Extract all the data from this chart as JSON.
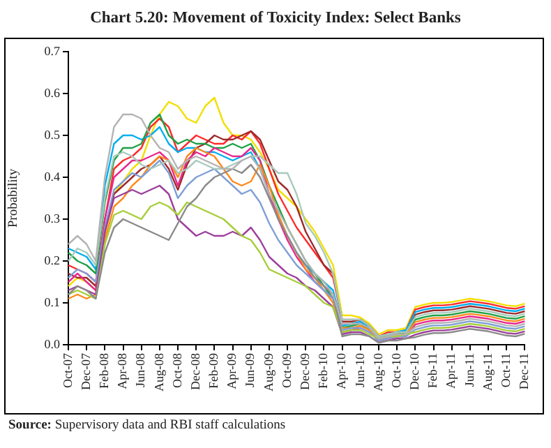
{
  "chart_data": {
    "type": "line",
    "title": "Chart 5.20: Movement of Toxicity Index: Select Banks",
    "ylabel": "Probability",
    "annotations": [
      "Source: Supervisory data and RBI staff calculations"
    ],
    "categories": [
      "Oct-07",
      null,
      "Dec-07",
      null,
      "Feb-08",
      null,
      "Apr-08",
      null,
      "Jun-08",
      null,
      "Aug-08",
      null,
      "Oct-08",
      null,
      "Dec-08",
      null,
      "Feb-09",
      null,
      "Apr-09",
      null,
      "Jun-09",
      null,
      "Aug-09",
      null,
      "Oct-09",
      null,
      "Dec-09",
      null,
      "Feb-10",
      null,
      "Apr-10",
      null,
      "Jun-10",
      null,
      "Aug-10",
      null,
      "Oct-10",
      null,
      "Dec-10",
      null,
      "Feb-11",
      null,
      "Apr-11",
      null,
      "Jun-11",
      null,
      "Aug-11",
      null,
      "Oct-11",
      null,
      "Dec-11"
    ],
    "ylim": [
      0,
      0.7
    ],
    "yticks": [
      {
        "value": 0,
        "label": "0.0"
      },
      0.1,
      0.2,
      0.3,
      0.4,
      0.5,
      0.6,
      0.7
    ],
    "grid": false,
    "legend": false,
    "series": [
      {
        "color": "#b3b3b3",
        "values": [
          0.24,
          0.26,
          0.24,
          0.2,
          0.4,
          0.52,
          0.55,
          0.55,
          0.54,
          0.5,
          0.47,
          0.46,
          0.42,
          0.44,
          0.45,
          0.44,
          0.43,
          0.42,
          0.42,
          0.44,
          0.45,
          0.42,
          0.36,
          0.32,
          0.28,
          0.24,
          0.2,
          0.17,
          0.15,
          0.12,
          0.05,
          0.05,
          0.05,
          0.04,
          0.015,
          0.02,
          0.025,
          0.025,
          0.042,
          0.048,
          0.052,
          0.052,
          0.054,
          0.058,
          0.062,
          0.059,
          0.056,
          0.051,
          0.046,
          0.044,
          0.05
        ]
      },
      {
        "color": "#a8cabd",
        "values": [
          0.2,
          0.23,
          0.22,
          0.19,
          0.35,
          0.45,
          0.46,
          0.45,
          0.43,
          0.42,
          0.43,
          0.44,
          0.41,
          0.42,
          0.44,
          0.43,
          0.42,
          0.42,
          0.43,
          0.44,
          0.45,
          0.45,
          0.43,
          0.41,
          0.41,
          0.36,
          0.29,
          0.26,
          0.22,
          0.17,
          0.06,
          0.06,
          0.06,
          0.045,
          0.02,
          0.025,
          0.03,
          0.03,
          0.066,
          0.072,
          0.076,
          0.076,
          0.078,
          0.082,
          0.086,
          0.083,
          0.08,
          0.075,
          0.07,
          0.068,
          0.074
        ]
      },
      {
        "color": "#8a8a8a",
        "values": [
          0.12,
          0.14,
          0.13,
          0.11,
          0.22,
          0.28,
          0.3,
          0.29,
          0.28,
          0.27,
          0.26,
          0.25,
          0.29,
          0.33,
          0.35,
          0.38,
          0.4,
          0.41,
          0.42,
          0.41,
          0.43,
          0.4,
          0.35,
          0.3,
          0.26,
          0.22,
          0.19,
          0.16,
          0.14,
          0.12,
          0.02,
          0.025,
          0.025,
          0.02,
          0.005,
          0.01,
          0.01,
          0.015,
          0.018,
          0.024,
          0.028,
          0.028,
          0.03,
          0.034,
          0.038,
          0.035,
          0.032,
          0.027,
          0.022,
          0.02,
          0.026
        ]
      },
      {
        "color": "#a6ce39",
        "values": [
          0.12,
          0.13,
          0.12,
          0.11,
          0.24,
          0.31,
          0.32,
          0.31,
          0.3,
          0.33,
          0.34,
          0.33,
          0.31,
          0.34,
          0.33,
          0.32,
          0.31,
          0.3,
          0.28,
          0.26,
          0.25,
          0.22,
          0.18,
          0.17,
          0.16,
          0.15,
          0.14,
          0.12,
          0.1,
          0.09,
          0.03,
          0.035,
          0.035,
          0.025,
          0.015,
          0.02,
          0.02,
          0.025,
          0.03,
          0.036,
          0.04,
          0.04,
          0.042,
          0.046,
          0.05,
          0.047,
          0.044,
          0.039,
          0.034,
          0.032,
          0.038
        ]
      },
      {
        "color": "#9c3f9c",
        "values": [
          0.13,
          0.14,
          0.13,
          0.12,
          0.27,
          0.35,
          0.36,
          0.37,
          0.36,
          0.37,
          0.38,
          0.36,
          0.3,
          0.28,
          0.26,
          0.27,
          0.26,
          0.26,
          0.27,
          0.26,
          0.28,
          0.25,
          0.21,
          0.19,
          0.17,
          0.16,
          0.14,
          0.13,
          0.11,
          0.09,
          0.025,
          0.03,
          0.03,
          0.02,
          0.005,
          0.01,
          0.015,
          0.015,
          0.024,
          0.03,
          0.034,
          0.034,
          0.036,
          0.04,
          0.044,
          0.041,
          0.038,
          0.033,
          0.028,
          0.026,
          0.032
        ]
      },
      {
        "color": "#7f9fd6",
        "values": [
          0.16,
          0.18,
          0.17,
          0.15,
          0.28,
          0.37,
          0.39,
          0.41,
          0.4,
          0.42,
          0.44,
          0.41,
          0.35,
          0.38,
          0.4,
          0.41,
          0.42,
          0.4,
          0.38,
          0.36,
          0.37,
          0.34,
          0.29,
          0.25,
          0.22,
          0.19,
          0.17,
          0.15,
          0.13,
          0.11,
          0.035,
          0.04,
          0.04,
          0.03,
          0.01,
          0.015,
          0.02,
          0.02,
          0.036,
          0.042,
          0.046,
          0.046,
          0.048,
          0.052,
          0.056,
          0.053,
          0.05,
          0.045,
          0.04,
          0.038,
          0.044
        ]
      },
      {
        "color": "#ff8a1c",
        "values": [
          0.11,
          0.12,
          0.11,
          0.12,
          0.25,
          0.33,
          0.35,
          0.38,
          0.4,
          0.43,
          0.45,
          0.44,
          0.4,
          0.45,
          0.47,
          0.46,
          0.45,
          0.42,
          0.39,
          0.38,
          0.39,
          0.43,
          0.38,
          0.31,
          0.26,
          0.22,
          0.18,
          0.16,
          0.13,
          0.1,
          0.04,
          0.04,
          0.045,
          0.035,
          0.01,
          0.02,
          0.025,
          0.025,
          0.054,
          0.06,
          0.064,
          0.064,
          0.066,
          0.07,
          0.074,
          0.071,
          0.068,
          0.063,
          0.058,
          0.056,
          0.062
        ]
      },
      {
        "color": "#e8298f",
        "values": [
          0.15,
          0.17,
          0.15,
          0.13,
          0.3,
          0.4,
          0.42,
          0.44,
          0.44,
          0.45,
          0.46,
          0.44,
          0.38,
          0.44,
          0.46,
          0.45,
          0.47,
          0.46,
          0.45,
          0.45,
          0.47,
          0.44,
          0.36,
          0.3,
          0.25,
          0.21,
          0.18,
          0.15,
          0.13,
          0.11,
          0.03,
          0.035,
          0.04,
          0.03,
          0.01,
          0.015,
          0.02,
          0.02,
          0.048,
          0.054,
          0.058,
          0.058,
          0.06,
          0.064,
          0.068,
          0.065,
          0.062,
          0.057,
          0.052,
          0.05,
          0.056
        ]
      },
      {
        "color": "#1fa045",
        "values": [
          0.22,
          0.2,
          0.19,
          0.17,
          0.34,
          0.44,
          0.47,
          0.47,
          0.48,
          0.53,
          0.55,
          0.5,
          0.48,
          0.49,
          0.48,
          0.48,
          0.47,
          0.47,
          0.48,
          0.47,
          0.48,
          0.44,
          0.38,
          0.33,
          0.28,
          0.24,
          0.2,
          0.17,
          0.14,
          0.11,
          0.04,
          0.045,
          0.05,
          0.035,
          0.015,
          0.02,
          0.025,
          0.03,
          0.06,
          0.066,
          0.07,
          0.07,
          0.072,
          0.076,
          0.08,
          0.077,
          0.074,
          0.069,
          0.064,
          0.062,
          0.068
        ]
      },
      {
        "color": "#00aeef",
        "values": [
          0.23,
          0.22,
          0.21,
          0.18,
          0.38,
          0.48,
          0.5,
          0.5,
          0.49,
          0.5,
          0.52,
          0.48,
          0.46,
          0.47,
          0.47,
          0.46,
          0.46,
          0.45,
          0.44,
          0.45,
          0.46,
          0.42,
          0.36,
          0.3,
          0.26,
          0.22,
          0.19,
          0.17,
          0.15,
          0.13,
          0.045,
          0.05,
          0.055,
          0.04,
          0.015,
          0.025,
          0.03,
          0.035,
          0.078,
          0.084,
          0.088,
          0.088,
          0.09,
          0.094,
          0.098,
          0.095,
          0.092,
          0.087,
          0.082,
          0.08,
          0.086
        ]
      },
      {
        "color": "#9e2a2b",
        "values": [
          0.17,
          0.16,
          0.16,
          0.14,
          0.27,
          0.36,
          0.38,
          0.4,
          0.42,
          0.43,
          0.45,
          0.42,
          0.37,
          0.43,
          0.47,
          0.48,
          0.5,
          0.49,
          0.49,
          0.5,
          0.51,
          0.49,
          0.44,
          0.39,
          0.37,
          0.33,
          0.27,
          0.23,
          0.19,
          0.17,
          0.055,
          0.055,
          0.06,
          0.045,
          0.02,
          0.025,
          0.03,
          0.03,
          0.072,
          0.078,
          0.082,
          0.082,
          0.084,
          0.088,
          0.092,
          0.089,
          0.086,
          0.081,
          0.076,
          0.074,
          0.08
        ]
      },
      {
        "color": "#ff2a2a",
        "values": [
          0.19,
          0.18,
          0.17,
          0.15,
          0.3,
          0.42,
          0.44,
          0.45,
          0.47,
          0.52,
          0.54,
          0.52,
          0.46,
          0.48,
          0.5,
          0.49,
          0.48,
          0.48,
          0.5,
          0.49,
          0.51,
          0.48,
          0.42,
          0.36,
          0.32,
          0.28,
          0.25,
          0.22,
          0.19,
          0.16,
          0.06,
          0.06,
          0.06,
          0.045,
          0.02,
          0.03,
          0.03,
          0.035,
          0.084,
          0.09,
          0.094,
          0.094,
          0.096,
          0.1,
          0.104,
          0.101,
          0.098,
          0.093,
          0.088,
          0.086,
          0.092
        ]
      },
      {
        "color": "#f2df00",
        "values": [
          0.14,
          0.16,
          0.15,
          0.13,
          0.26,
          0.36,
          0.39,
          0.42,
          0.44,
          0.5,
          0.55,
          0.58,
          0.57,
          0.54,
          0.53,
          0.57,
          0.59,
          0.53,
          0.5,
          0.5,
          0.49,
          0.46,
          0.42,
          0.37,
          0.35,
          0.33,
          0.3,
          0.27,
          0.23,
          0.19,
          0.07,
          0.07,
          0.065,
          0.05,
          0.025,
          0.035,
          0.035,
          0.04,
          0.09,
          0.096,
          0.1,
          0.1,
          0.102,
          0.106,
          0.11,
          0.107,
          0.104,
          0.099,
          0.094,
          0.092,
          0.098
        ]
      }
    ]
  }
}
